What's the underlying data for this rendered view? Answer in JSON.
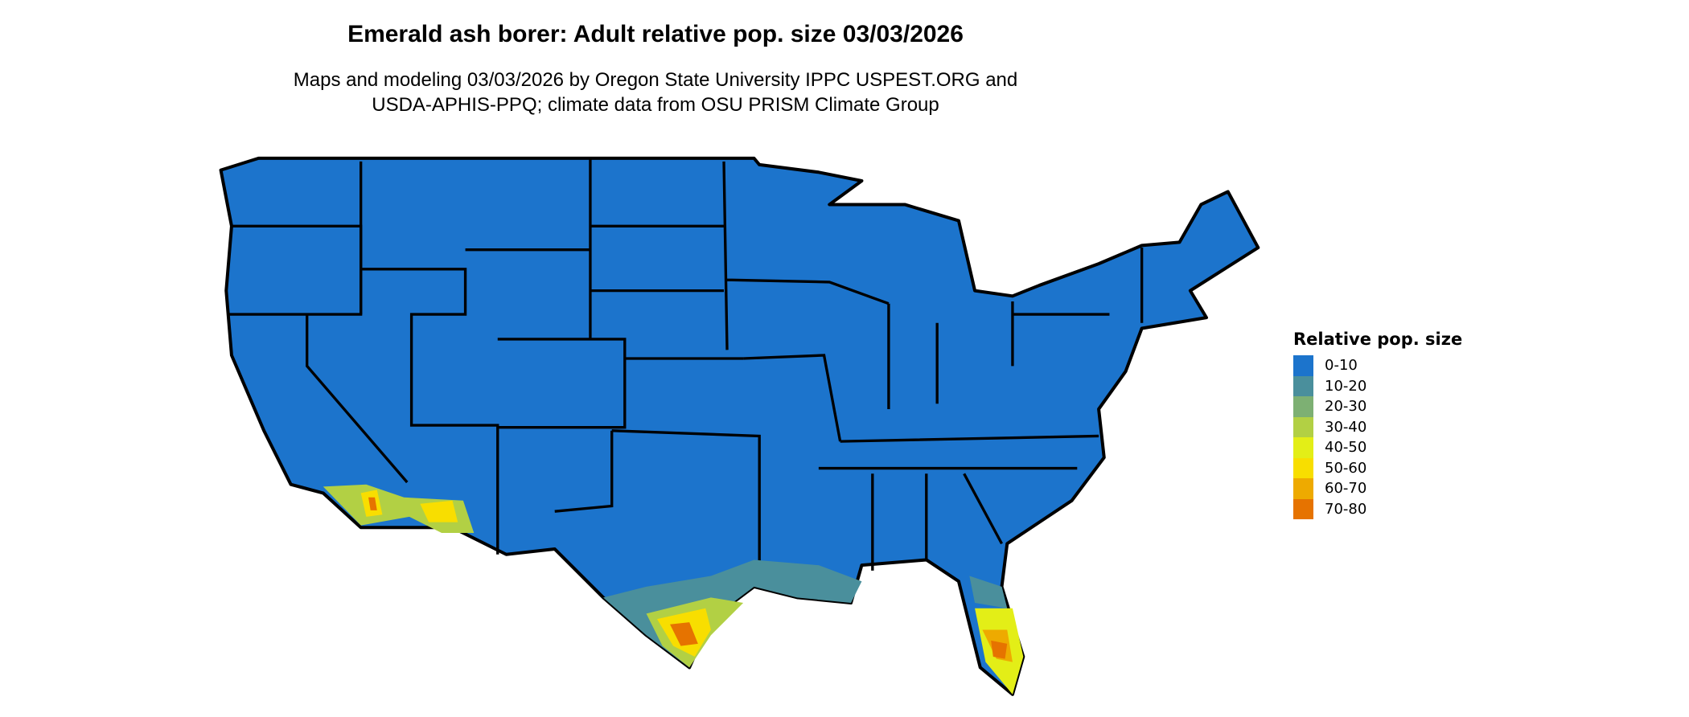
{
  "title": "Emerald ash borer: Adult relative pop. size 03/03/2026",
  "subtitle_line1": "Maps and modeling 03/03/2026 by Oregon State University IPPC USPEST.ORG and",
  "subtitle_line2": "USDA-APHIS-PPQ; climate data from OSU PRISM Climate Group",
  "legend": {
    "title": "Relative pop. size",
    "items": [
      {
        "label": "0-10",
        "color": "#1C74CC"
      },
      {
        "label": "10-20",
        "color": "#4A8F9C"
      },
      {
        "label": "20-30",
        "color": "#7DB073"
      },
      {
        "label": "30-40",
        "color": "#B2D044"
      },
      {
        "label": "40-50",
        "color": "#E3EE17"
      },
      {
        "label": "50-60",
        "color": "#F8DE00"
      },
      {
        "label": "60-70",
        "color": "#EEAA00"
      },
      {
        "label": "70-80",
        "color": "#E67300"
      }
    ]
  }
}
